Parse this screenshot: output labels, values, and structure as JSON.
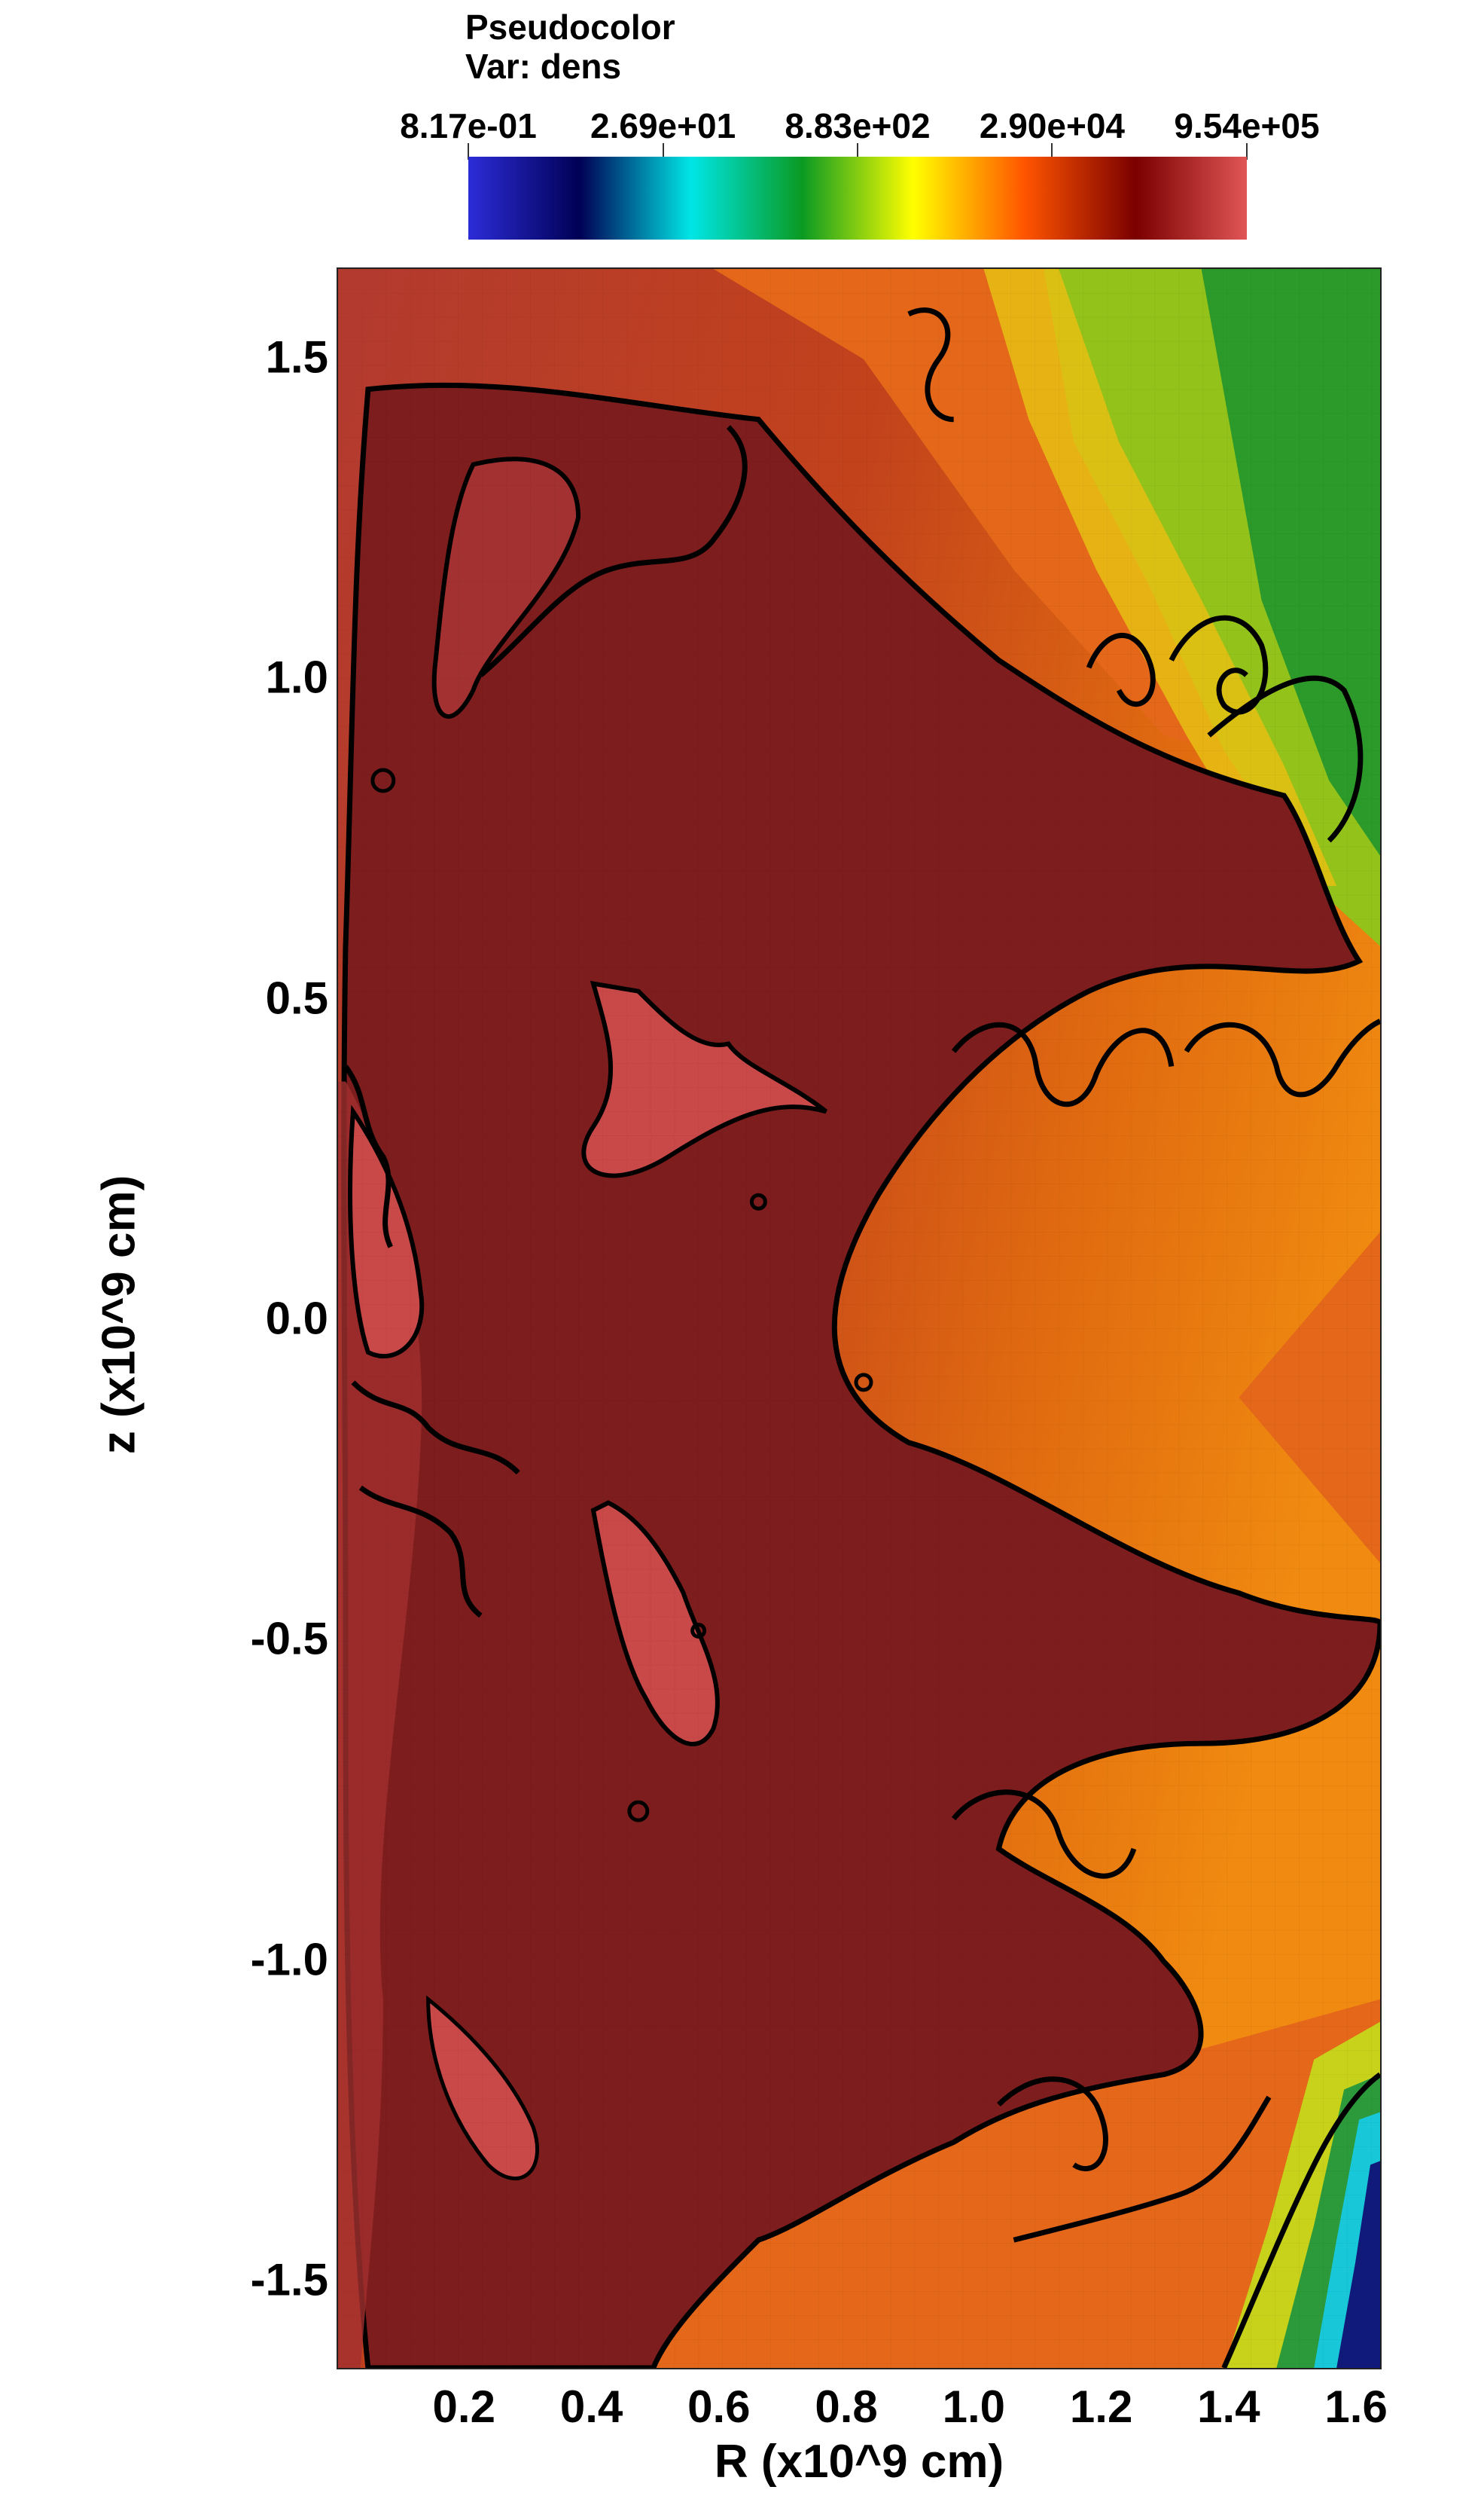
{
  "legend": {
    "line1": "Pseudocolor",
    "line2": "Var: dens"
  },
  "colormap": [
    "#2c2cd8",
    "#000055",
    "#00e6e6",
    "#0a9a22",
    "#ffff00",
    "#ff5500",
    "#7b0000",
    "#e05555"
  ],
  "contour_color": "#000000",
  "chart_data": {
    "type": "heatmap",
    "title": "",
    "variable": "dens",
    "colorbar": {
      "scale": "log",
      "range": [
        0.817,
        954000
      ],
      "tick_labels": [
        "8.17e-01",
        "2.69e+01",
        "8.83e+02",
        "2.90e+04",
        "9.54e+05"
      ],
      "ticks": [
        0.817,
        26.9,
        883,
        29000,
        954000
      ]
    },
    "xlabel": "R (x10^9 cm)",
    "ylabel": "z (x10^9 cm)",
    "xlim": [
      0.0,
      1.64
    ],
    "ylim": [
      -1.64,
      1.64
    ],
    "x_tick_labels": [
      "0.2",
      "0.4",
      "0.6",
      "0.8",
      "1.0",
      "1.2",
      "1.4",
      "1.6"
    ],
    "x_ticks": [
      0.2,
      0.4,
      0.6,
      0.8,
      1.0,
      1.2,
      1.4,
      1.6
    ],
    "y_tick_labels": [
      "1.5",
      "1.0",
      "0.5",
      "0.0",
      "-0.5",
      "-1.0",
      "-1.5"
    ],
    "y_ticks": [
      1.5,
      1.0,
      0.5,
      0.0,
      -0.5,
      -1.0,
      -1.5
    ],
    "grid": true
  }
}
